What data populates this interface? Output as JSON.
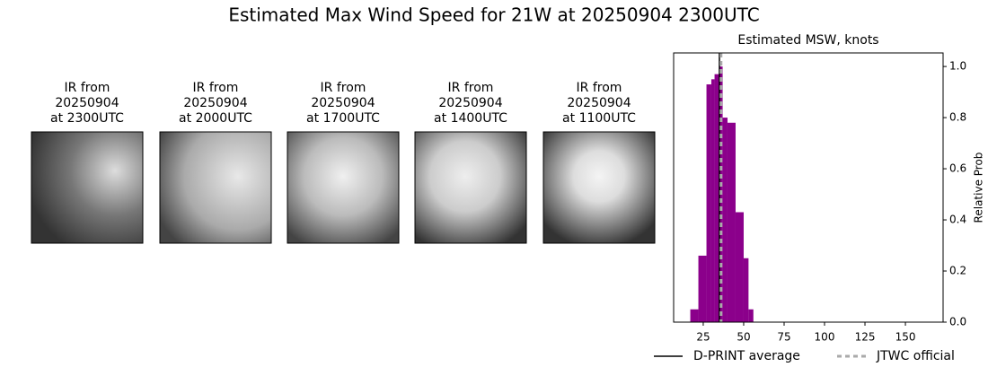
{
  "title": "Estimated Max Wind Speed for 21W at 20250904 2300UTC",
  "panels": [
    {
      "lines": [
        "IR from",
        "20250904",
        "at 2300UTC"
      ]
    },
    {
      "lines": [
        "IR from",
        "20250904",
        "at 2000UTC"
      ]
    },
    {
      "lines": [
        "IR from",
        "20250904",
        "at 1700UTC"
      ]
    },
    {
      "lines": [
        "IR from",
        "20250904",
        "at 1400UTC"
      ]
    },
    {
      "lines": [
        "IR from",
        "20250904",
        "at 1100UTC"
      ]
    }
  ],
  "chart_data": {
    "type": "histogram",
    "title": "Estimated MSW, knots",
    "y_label": "Relative Prob",
    "color": "#8b008b",
    "bins": [
      17,
      22,
      27,
      30,
      32,
      35,
      37,
      40,
      45,
      50,
      53,
      56
    ],
    "counts": [
      0.05,
      0.26,
      0.93,
      0.95,
      0.97,
      1.0,
      0.8,
      0.78,
      0.43,
      0.25,
      0.05
    ],
    "lines": [
      {
        "name": "D-PRINT average",
        "value": 35,
        "color": "#000000",
        "dash": false
      },
      {
        "name": "JTWC official",
        "value": 36,
        "color": "#aaaaaa",
        "dash": true
      }
    ],
    "xlim": [
      6.7,
      173.3
    ],
    "xticks": [
      25,
      50,
      75,
      100,
      125,
      150
    ],
    "ylim": [
      0,
      1.053
    ],
    "yticks": [
      {
        "value": 0,
        "label": "0.0"
      },
      {
        "value": 0.2,
        "label": "0.2"
      },
      {
        "value": 0.4,
        "label": "0.4"
      },
      {
        "value": 0.6,
        "label": "0.6"
      },
      {
        "value": 0.8,
        "label": "0.8"
      },
      {
        "value": 1.0,
        "label": "1.0"
      }
    ]
  }
}
